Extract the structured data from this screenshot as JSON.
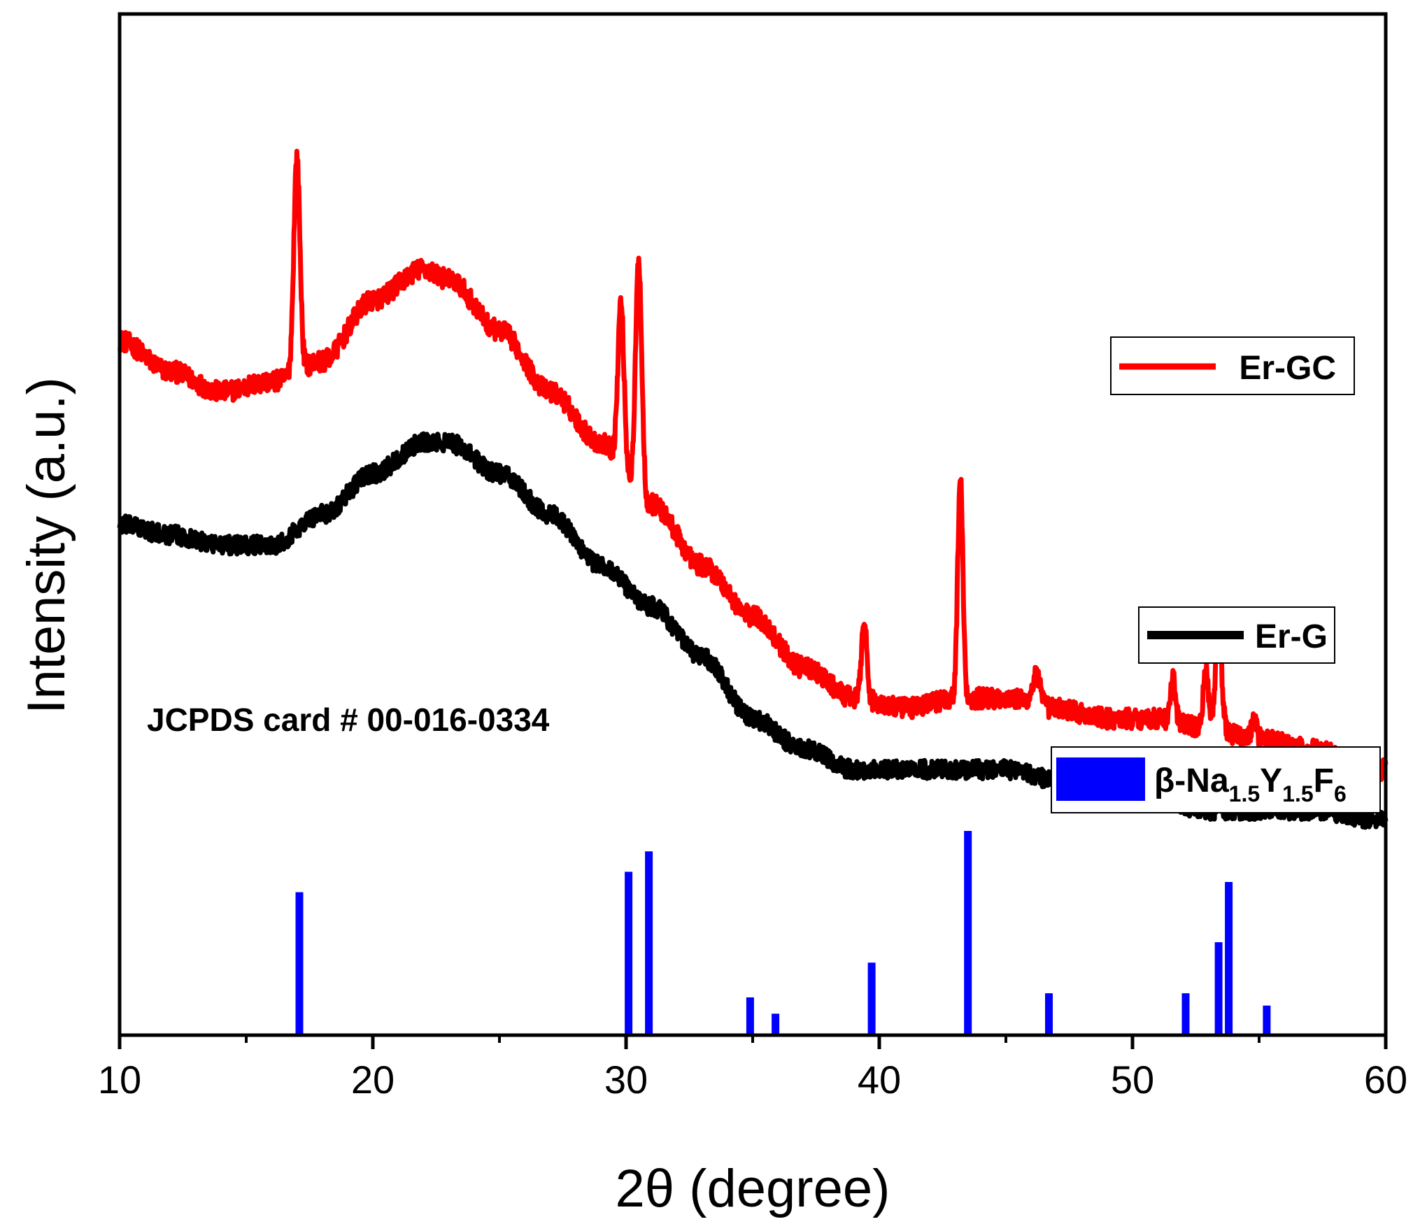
{
  "chart_data": {
    "type": "line",
    "title": "",
    "xlabel": "2θ (degree)",
    "ylabel": "Intensity (a.u.)",
    "xlim": [
      10,
      60
    ],
    "ylim": [
      0,
      10
    ],
    "x_ticks": [
      10,
      20,
      30,
      40,
      50,
      60
    ],
    "x_minor_ticks": [
      15,
      25,
      35,
      45,
      55
    ],
    "y_ticks_shown": false,
    "annotation": "JCPDS card # 00-016-0334",
    "series": [
      {
        "name": "Er-GC",
        "color": "#ff0000",
        "kind": "line",
        "noise": 0.1,
        "baseline": [
          [
            10,
            6.8
          ],
          [
            12,
            6.5
          ],
          [
            14,
            6.3
          ],
          [
            16,
            6.4
          ],
          [
            18,
            6.6
          ],
          [
            20,
            7.2
          ],
          [
            22,
            7.5
          ],
          [
            23,
            7.4
          ],
          [
            25,
            6.9
          ],
          [
            27,
            6.3
          ],
          [
            29,
            5.8
          ],
          [
            31,
            5.2
          ],
          [
            33,
            4.6
          ],
          [
            35,
            4.1
          ],
          [
            37,
            3.6
          ],
          [
            39,
            3.3
          ],
          [
            41,
            3.2
          ],
          [
            43,
            3.3
          ],
          [
            45,
            3.3
          ],
          [
            47,
            3.2
          ],
          [
            49,
            3.1
          ],
          [
            51,
            3.1
          ],
          [
            53,
            3.0
          ],
          [
            55,
            2.9
          ],
          [
            57,
            2.8
          ],
          [
            60,
            2.6
          ]
        ],
        "peaks": [
          [
            17.0,
            2.1,
            0.12
          ],
          [
            29.8,
            1.6,
            0.12
          ],
          [
            30.5,
            2.3,
            0.12
          ],
          [
            39.4,
            0.8,
            0.1
          ],
          [
            43.2,
            2.2,
            0.1
          ],
          [
            46.2,
            0.3,
            0.15
          ],
          [
            51.6,
            0.4,
            0.1
          ],
          [
            52.9,
            0.6,
            0.1
          ],
          [
            53.4,
            1.0,
            0.12
          ],
          [
            54.8,
            0.2,
            0.1
          ]
        ]
      },
      {
        "name": "Er-G",
        "color": "#000000",
        "kind": "line",
        "noise": 0.09,
        "baseline": [
          [
            10,
            5.0
          ],
          [
            12,
            4.9
          ],
          [
            14,
            4.8
          ],
          [
            16,
            4.8
          ],
          [
            18,
            5.1
          ],
          [
            20,
            5.5
          ],
          [
            22,
            5.8
          ],
          [
            23,
            5.8
          ],
          [
            25,
            5.5
          ],
          [
            27,
            5.1
          ],
          [
            29,
            4.6
          ],
          [
            31,
            4.2
          ],
          [
            33,
            3.7
          ],
          [
            35,
            3.1
          ],
          [
            37,
            2.8
          ],
          [
            39,
            2.6
          ],
          [
            41,
            2.6
          ],
          [
            43,
            2.6
          ],
          [
            45,
            2.6
          ],
          [
            47,
            2.5
          ],
          [
            49,
            2.4
          ],
          [
            51,
            2.3
          ],
          [
            53,
            2.2
          ],
          [
            55,
            2.2
          ],
          [
            57,
            2.2
          ],
          [
            60,
            2.1
          ]
        ],
        "peaks": []
      },
      {
        "name": "β-Na1.5Y1.5F6",
        "color": "#0000ff",
        "kind": "sticks",
        "x": [
          17.1,
          30.1,
          30.9,
          34.9,
          35.9,
          39.7,
          43.5,
          46.7,
          52.1,
          53.4,
          53.8,
          55.3
        ],
        "values": [
          1.4,
          1.6,
          1.8,
          0.37,
          0.21,
          0.71,
          2.0,
          0.41,
          0.41,
          0.91,
          1.5,
          0.29
        ]
      }
    ],
    "legend": {
      "er_gc_label": "Er-GC",
      "er_g_label": "Er-G",
      "ref_label_main": "β-Na",
      "ref_sub1": "1.5",
      "ref_y": "Y",
      "ref_sub2": "1.5",
      "ref_f": "F",
      "ref_sub3": "6"
    }
  }
}
